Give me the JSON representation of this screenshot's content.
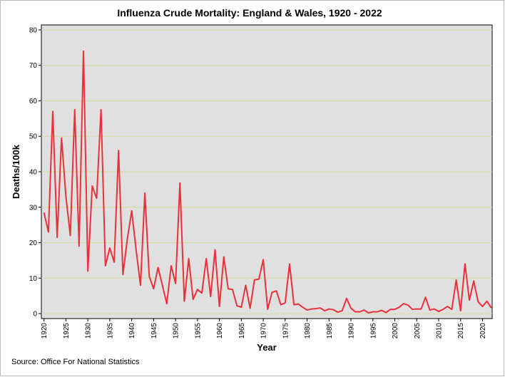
{
  "chart_data": {
    "type": "line",
    "title": "Influenza Crude Mortality: England & Wales, 1920 - 2022",
    "x_label": "Year",
    "y_label": "Deaths/100k",
    "source": "Source: Office For National Statistics",
    "x": [
      1920,
      1921,
      1922,
      1923,
      1924,
      1925,
      1926,
      1927,
      1928,
      1929,
      1930,
      1931,
      1932,
      1933,
      1934,
      1935,
      1936,
      1937,
      1938,
      1939,
      1940,
      1941,
      1942,
      1943,
      1944,
      1945,
      1946,
      1947,
      1948,
      1949,
      1950,
      1951,
      1952,
      1953,
      1954,
      1955,
      1956,
      1957,
      1958,
      1959,
      1960,
      1961,
      1962,
      1963,
      1964,
      1965,
      1966,
      1967,
      1968,
      1969,
      1970,
      1971,
      1972,
      1973,
      1974,
      1975,
      1976,
      1977,
      1978,
      1979,
      1980,
      1981,
      1982,
      1983,
      1984,
      1985,
      1986,
      1987,
      1988,
      1989,
      1990,
      1991,
      1992,
      1993,
      1994,
      1995,
      1996,
      1997,
      1998,
      1999,
      2000,
      2001,
      2002,
      2003,
      2004,
      2005,
      2006,
      2007,
      2008,
      2009,
      2010,
      2011,
      2012,
      2013,
      2014,
      2015,
      2016,
      2017,
      2018,
      2019,
      2020,
      2021,
      2022
    ],
    "series": [
      {
        "name": "Deaths/100k",
        "color": "#e8313a",
        "values": [
          28.5,
          23,
          57,
          21.5,
          49.5,
          33,
          22,
          57.5,
          19,
          74,
          12,
          36,
          32.5,
          57.5,
          13.5,
          18.5,
          14.5,
          46,
          11,
          21,
          29,
          18,
          8,
          34,
          10.5,
          7,
          13,
          8,
          2.8,
          13.5,
          8.5,
          36.8,
          3.5,
          15.5,
          4,
          6.8,
          5.8,
          15.5,
          4.8,
          18,
          2,
          16,
          7,
          6.8,
          2.2,
          1.8,
          8,
          1.5,
          9.5,
          9.7,
          15.2,
          1.2,
          6,
          6.4,
          2.5,
          3,
          14,
          2.5,
          2.7,
          1.8,
          1,
          1.3,
          1.4,
          1.6,
          0.8,
          1.3,
          1.1,
          0.4,
          0.8,
          4.3,
          1.5,
          0.5,
          0.5,
          1,
          0.2,
          0.5,
          0.5,
          0.9,
          0.3,
          1.2,
          1.2,
          1.8,
          2.8,
          2.4,
          1.2,
          1.3,
          1.3,
          4.6,
          1,
          1.3,
          0.6,
          1.2,
          2,
          1.2,
          9.5,
          0.8,
          14,
          3.8,
          9.2,
          3.3,
          2,
          3.5,
          1.6
        ]
      }
    ],
    "xlim": [
      1919.4,
      2022.2
    ],
    "xticks": [
      1920,
      1925,
      1930,
      1935,
      1940,
      1945,
      1950,
      1955,
      1960,
      1965,
      1970,
      1975,
      1980,
      1985,
      1990,
      1995,
      2000,
      2005,
      2010,
      2015,
      2020
    ],
    "ylim": [
      -1.4,
      81.4
    ],
    "yticks": [
      0,
      10,
      20,
      30,
      40,
      50,
      60,
      70,
      80
    ],
    "grid": true
  }
}
